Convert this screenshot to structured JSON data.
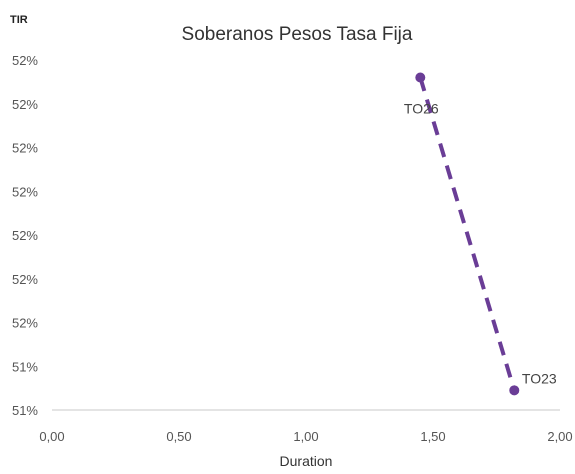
{
  "chart_data": {
    "type": "scatter",
    "title": "Soberanos Pesos Tasa Fija",
    "xlabel": "Duration",
    "ylabel": "TIR",
    "xlim": [
      0,
      2
    ],
    "x_ticks": [
      "0,00",
      "0,50",
      "1,00",
      "1,50",
      "2,00"
    ],
    "y_ticks": [
      "51%",
      "51%",
      "52%",
      "52%",
      "52%",
      "52%",
      "52%",
      "52%",
      "52%"
    ],
    "grid": false,
    "series": [
      {
        "points": [
          {
            "label": "TO26",
            "x": 1.45,
            "y": 7.6
          },
          {
            "label": "TO23",
            "x": 1.82,
            "y": 0.45
          }
        ],
        "line_style": "dashed"
      }
    ],
    "colors": {
      "series": "#6a3d96",
      "axis": "#c8c8c8",
      "text": "#333333"
    }
  }
}
